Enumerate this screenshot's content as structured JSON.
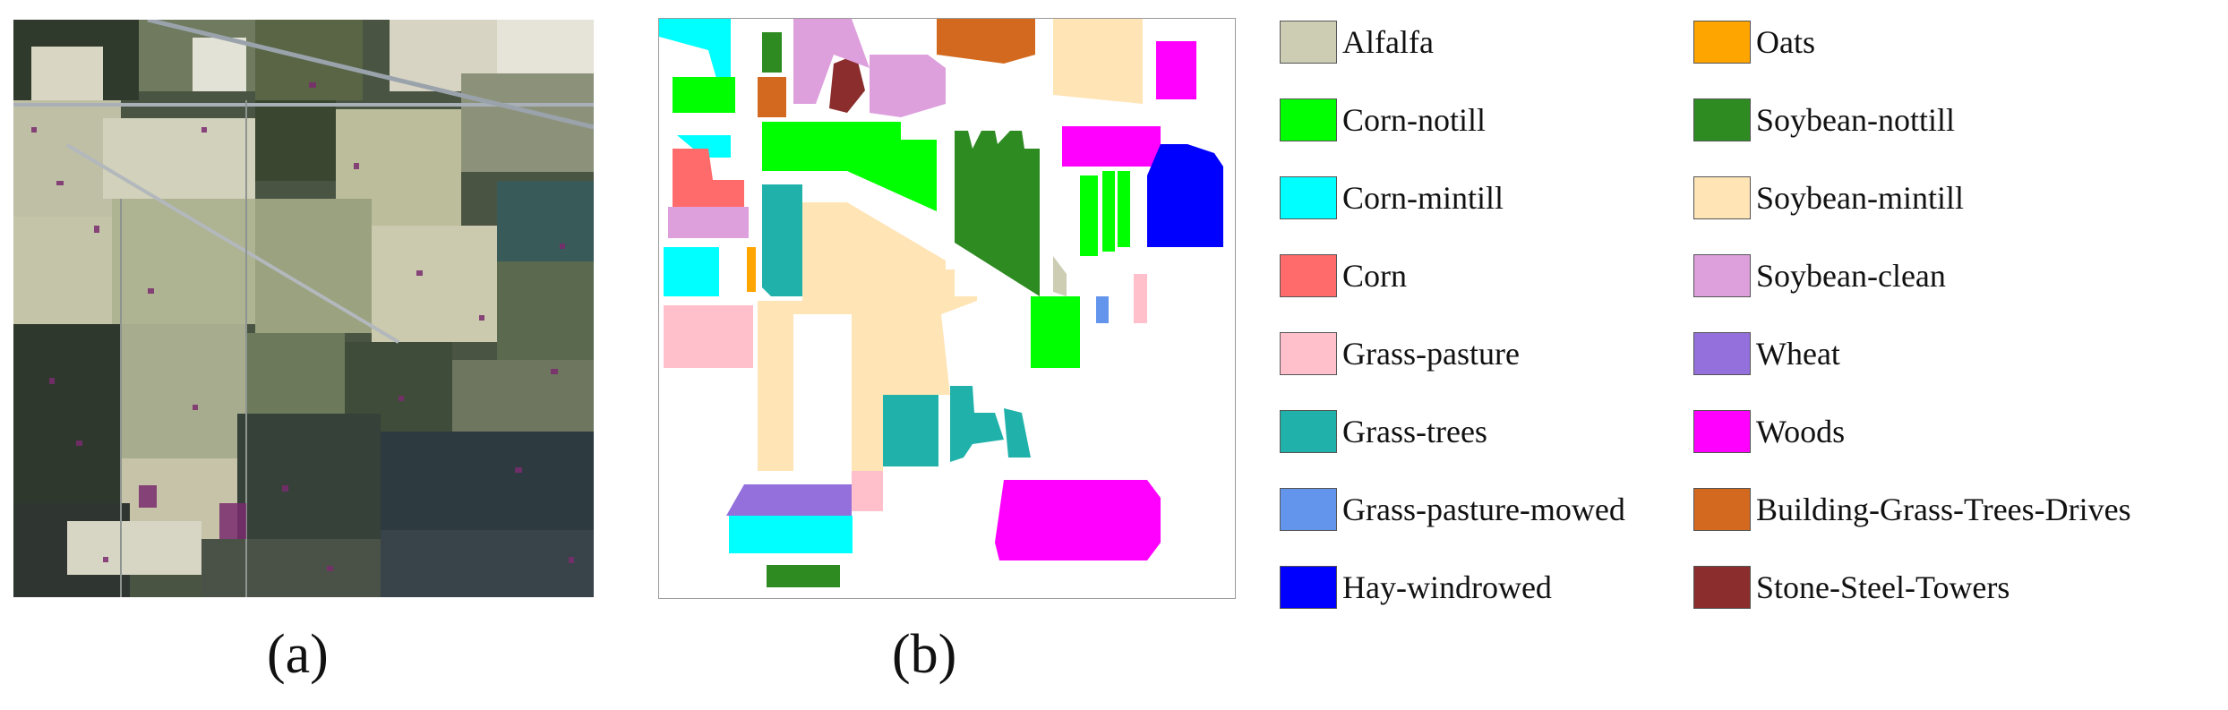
{
  "captions": {
    "a": "(a)",
    "b": "(b)"
  },
  "legend": {
    "left": [
      {
        "label": "Alfalfa",
        "color": "#cdcdb4"
      },
      {
        "label": "Corn-notill",
        "color": "#00ff00"
      },
      {
        "label": "Corn-mintill",
        "color": "#00ffff"
      },
      {
        "label": "Corn",
        "color": "#ff6a6a"
      },
      {
        "label": "Grass-pasture",
        "color": "#ffc0cb"
      },
      {
        "label": "Grass-trees",
        "color": "#20b2aa"
      },
      {
        "label": "Grass-pasture-mowed",
        "color": "#6495ed"
      },
      {
        "label": "Hay-windrowed",
        "color": "#0000ff"
      }
    ],
    "right": [
      {
        "label": "Oats",
        "color": "#ffa500"
      },
      {
        "label": "Soybean-nottill",
        "color": "#2e8b22"
      },
      {
        "label": "Soybean-mintill",
        "color": "#ffe4b5"
      },
      {
        "label": "Soybean-clean",
        "color": "#dda0dd"
      },
      {
        "label": "Wheat",
        "color": "#9370db"
      },
      {
        "label": "Woods",
        "color": "#ff00ff"
      },
      {
        "label": "Building-Grass-Trees-Drives",
        "color": "#d2691e"
      },
      {
        "label": "Stone-Steel-Towers",
        "color": "#8b2d2d"
      }
    ]
  }
}
